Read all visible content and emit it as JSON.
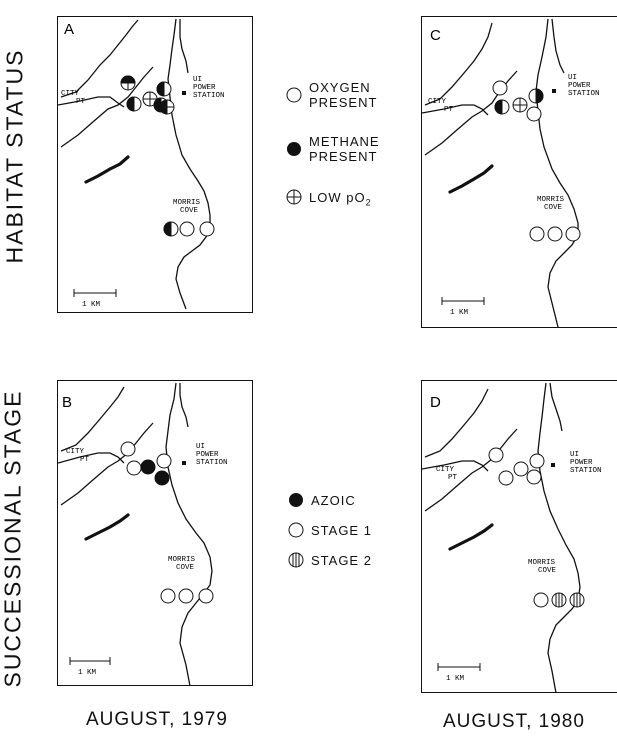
{
  "row_labels": {
    "top": "HABITAT  STATUS",
    "bottom": "SUCCESSIONAL  STAGE"
  },
  "column_labels": {
    "left": "AUGUST, 1979",
    "right": "AUGUST, 1980"
  },
  "map_text": {
    "city": "CITY",
    "pt": "PT",
    "power1": "UI",
    "power2": "POWER",
    "power3": "STATION",
    "morris": "MORRIS",
    "cove": "COVE",
    "scale": "1 KM"
  },
  "panels": [
    {
      "label": "A"
    },
    {
      "label": "B"
    },
    {
      "label": "C"
    },
    {
      "label": "D"
    }
  ],
  "legend_habitat": {
    "oxygen_line1": "OXYGEN",
    "oxygen_line2": "PRESENT",
    "methane_line1": "METHANE",
    "methane_line2": "PRESENT",
    "low_po2": "LOW  pO",
    "low_po2_sub": "2"
  },
  "legend_succession": {
    "azoic": "AZOIC",
    "stage1": "STAGE 1",
    "stage2": "STAGE 2"
  },
  "symbol_colors": {
    "ink": "#111111",
    "paper": "#ffffff"
  }
}
